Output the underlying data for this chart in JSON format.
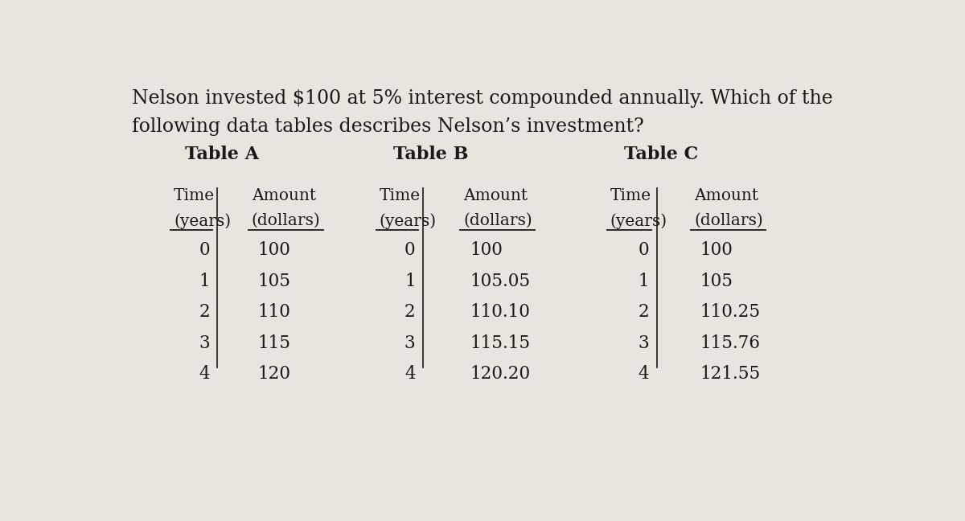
{
  "question_line1": "Nelson invested $100 at 5% interest compounded annually. Which of the",
  "question_line2": "following data tables describes Nelson’s investment?",
  "background_color": "#e8e4de",
  "text_color": "#1a1a1a",
  "table_a_title": "Table A",
  "table_b_title": "Table B",
  "table_c_title": "Table C",
  "table_a": {
    "time": [
      "0",
      "1",
      "2",
      "3",
      "4"
    ],
    "amount": [
      "100",
      "105",
      "110",
      "115",
      "120"
    ]
  },
  "table_b": {
    "time": [
      "0",
      "1",
      "2",
      "3",
      "4"
    ],
    "amount": [
      "100",
      "105.05",
      "110.10",
      "115.15",
      "120.20"
    ]
  },
  "table_c": {
    "time": [
      "0",
      "1",
      "2",
      "3",
      "4"
    ],
    "amount": [
      "100",
      "105",
      "110.25",
      "115.76",
      "121.55"
    ]
  },
  "question_fontsize": 17,
  "table_title_fontsize": 16,
  "header_fontsize": 14.5,
  "data_fontsize": 15.5,
  "fig_width": 12.0,
  "fig_height": 6.48,
  "dpi": 100
}
